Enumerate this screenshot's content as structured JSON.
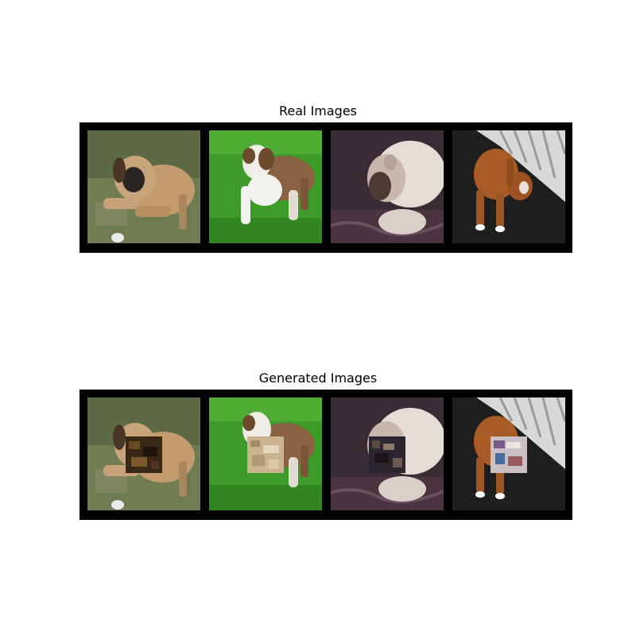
{
  "panels": {
    "real": {
      "title": "Real Images"
    },
    "generated": {
      "title": "Generated Images"
    }
  },
  "images": [
    {
      "name": "puppy-on-grass-tan-black",
      "tile_background": "#6f7c52"
    },
    {
      "name": "puppy-on-green-grass-brown-white",
      "tile_background": "#3e9b2a"
    },
    {
      "name": "fluffy-puppy-on-dark-rug",
      "tile_background": "#3a2c35"
    },
    {
      "name": "boxer-dog-by-white-fence",
      "tile_background": "#1e1e1c"
    }
  ],
  "inpaint_patches": [
    {
      "image": "puppy-on-grass-tan-black",
      "color": "#3a2816"
    },
    {
      "image": "puppy-on-green-grass-brown-white",
      "color": "#c9b48f"
    },
    {
      "image": "fluffy-puppy-on-dark-rug",
      "color": "#2a2630"
    },
    {
      "image": "boxer-dog-by-white-fence",
      "color": "#c8c0c4"
    }
  ]
}
